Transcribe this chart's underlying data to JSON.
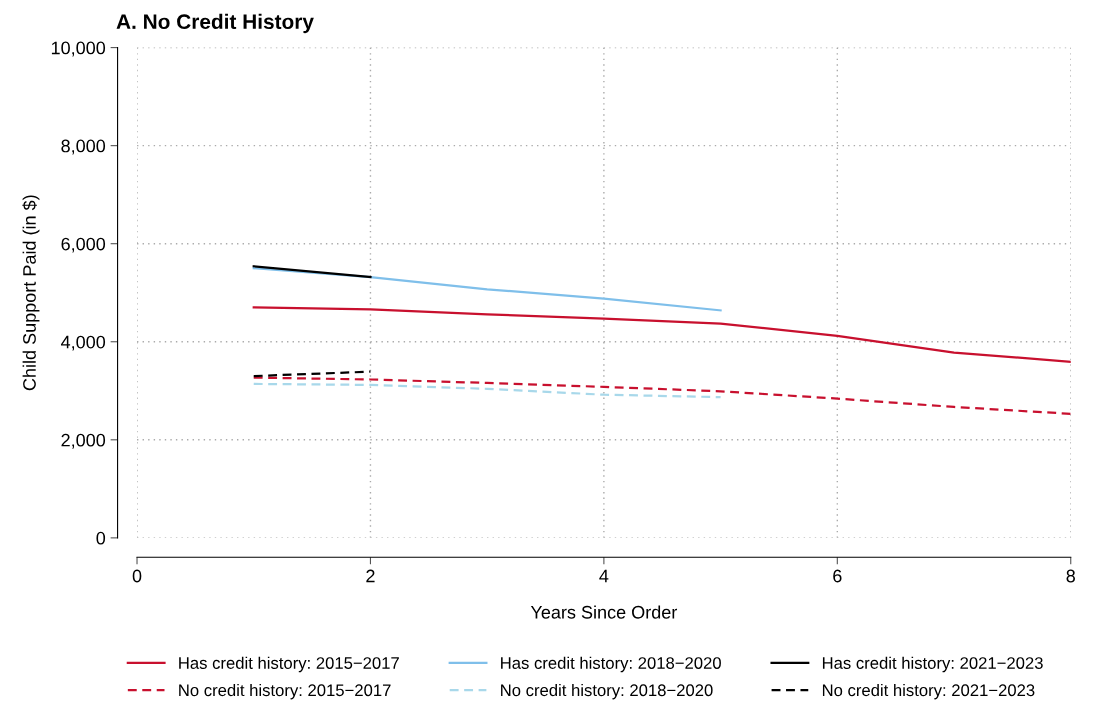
{
  "chart_data": {
    "type": "line",
    "title": "A. No Credit History",
    "xlabel": "Years Since Order",
    "ylabel": "Child Support Paid (in $)",
    "x": [
      1,
      2,
      3,
      4,
      5,
      6,
      7,
      8
    ],
    "xlim": [
      0,
      8
    ],
    "xticks": [
      0,
      2,
      4,
      6,
      8
    ],
    "ylim": [
      0,
      10000
    ],
    "yticks": [
      {
        "value": 0,
        "label": "0"
      },
      {
        "value": 2000,
        "label": "2,000"
      },
      {
        "value": 4000,
        "label": "4,000"
      },
      {
        "value": 6000,
        "label": "6,000"
      },
      {
        "value": 8000,
        "label": "8,000"
      },
      {
        "value": 10000,
        "label": "10,000"
      }
    ],
    "grid": true,
    "legend": "bottom",
    "marker": "none",
    "series": [
      {
        "name": "Has credit history: 2015−2017",
        "color": "#c8102e",
        "line_style": "solid",
        "values": [
          4700,
          4660,
          4560,
          4470,
          4370,
          4120,
          3780,
          3590
        ]
      },
      {
        "name": "No credit history: 2015−2017",
        "color": "#c8102e",
        "line_style": "dashed",
        "values": [
          3270,
          3230,
          3160,
          3080,
          2990,
          2840,
          2670,
          2530
        ]
      },
      {
        "name": "Has credit history: 2018−2020",
        "color": "#7fbfea",
        "line_style": "solid",
        "values": [
          5500,
          5320,
          5070,
          4880,
          4640,
          null,
          null,
          null
        ]
      },
      {
        "name": "No credit history: 2018−2020",
        "color": "#a8d8ea",
        "line_style": "dashed",
        "values": [
          3140,
          3120,
          3040,
          2920,
          2870,
          null,
          null,
          null
        ]
      },
      {
        "name": "Has credit history: 2021−2023",
        "color": "#000000",
        "line_style": "solid",
        "values": [
          5540,
          5320,
          null,
          null,
          null,
          null,
          null,
          null
        ]
      },
      {
        "name": "No credit history: 2021−2023",
        "color": "#000000",
        "line_style": "dashed",
        "values": [
          3300,
          3390,
          null,
          null,
          null,
          null,
          null,
          null
        ]
      }
    ]
  }
}
